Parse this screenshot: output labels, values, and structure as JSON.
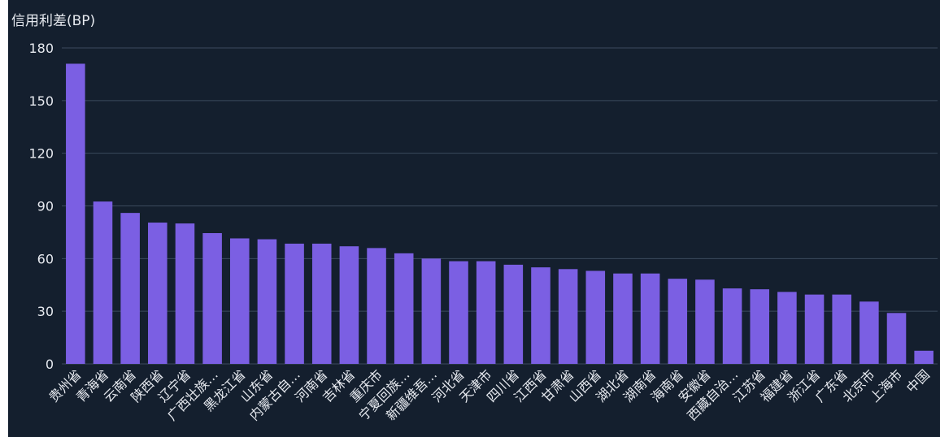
{
  "chart_data": {
    "type": "bar",
    "ylabel": "信用利差(BP)",
    "ylim": [
      0,
      180
    ],
    "yticks": [
      0,
      30,
      60,
      90,
      120,
      150,
      180
    ],
    "grid": true,
    "bar_color": "#7b5fe3",
    "background": "#141f2e",
    "categories": [
      "贵州省",
      "青海省",
      "云南省",
      "陕西省",
      "辽宁省",
      "广西壮族…",
      "黑龙江省",
      "山东省",
      "内蒙古自…",
      "河南省",
      "吉林省",
      "重庆市",
      "宁夏回族…",
      "新疆维吾…",
      "河北省",
      "天津市",
      "四川省",
      "江西省",
      "甘肃省",
      "山西省",
      "湖北省",
      "湖南省",
      "海南省",
      "安徽省",
      "西藏自治…",
      "江苏省",
      "福建省",
      "浙江省",
      "广东省",
      "北京市",
      "上海市",
      "中国"
    ],
    "values": [
      171,
      92.5,
      86,
      80.5,
      80,
      74.5,
      71.5,
      71,
      68.5,
      68.5,
      67,
      66,
      63,
      60,
      58.5,
      58.5,
      56.5,
      55,
      54,
      53,
      51.5,
      51.5,
      48.5,
      48,
      43,
      42.5,
      41,
      39.5,
      39.5,
      35.5,
      29,
      7.5
    ]
  }
}
